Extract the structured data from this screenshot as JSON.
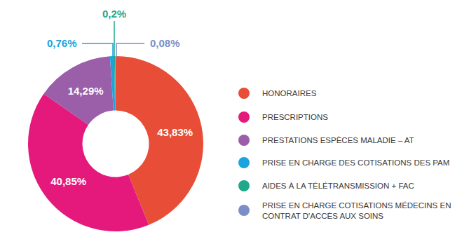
{
  "chart_data": {
    "type": "pie",
    "categories": [
      "HONORAIRES",
      "PRESCRIPTIONS",
      "PRESTATIONS ESPÈCES MALADIE – AT",
      "PRISE EN CHARGE DES COTISATIONS DES PAM",
      "AIDES À LA TÉLÉTRANSMISSION + FAC",
      "PRISE EN CHARGE COTISATIONS MÉDECINS EN CONTRAT D'ACCÈS AUX SOINS"
    ],
    "values": [
      43.83,
      40.85,
      14.29,
      0.76,
      0.2,
      0.08
    ],
    "value_labels": [
      "43,83%",
      "40,85%",
      "14,29%",
      "0,76%",
      "0,2%",
      "0,08%"
    ],
    "colors": [
      "#e84e37",
      "#e5197c",
      "#9b5ea8",
      "#1aa3dc",
      "#1fa98a",
      "#7b8ec8"
    ],
    "data_labels": true
  }
}
